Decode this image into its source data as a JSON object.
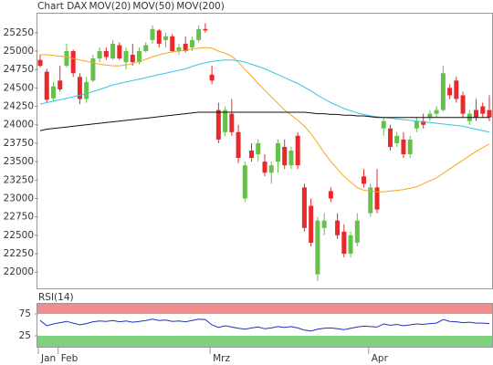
{
  "chart_data": [
    {
      "type": "candlestick",
      "categories": [
        "Jan",
        null,
        null,
        "Feb",
        null,
        null,
        null,
        null,
        null,
        null,
        null,
        null,
        null,
        null,
        null,
        null,
        null,
        null,
        null,
        null,
        null,
        null,
        null,
        null,
        null,
        null,
        "Mrz",
        null,
        null,
        null,
        null,
        null,
        null,
        null,
        null,
        null,
        null,
        null,
        null,
        null,
        null,
        null,
        null,
        null,
        null,
        null,
        null,
        null,
        null,
        null,
        "Apr",
        null,
        null,
        null,
        null,
        null,
        null,
        null,
        null,
        null,
        null,
        null,
        null,
        null,
        null,
        null,
        null,
        null,
        null
      ],
      "candles": {
        "name": "Chart DAX",
        "color": "#e8282b",
        "up_color": "#66c04a",
        "open": [
          24880,
          24720,
          24360,
          24600,
          24800,
          25000,
          24650,
          24350,
          24600,
          24900,
          25000,
          24900,
          25080,
          24850,
          24950,
          24850,
          25000,
          25150,
          25280,
          25150,
          25200,
          25000,
          25100,
          25050,
          25150,
          25300,
          24680,
          24200,
          23900,
          24150,
          23900,
          23000,
          23650,
          23600,
          23500,
          23350,
          23500,
          23700,
          23450,
          23850,
          23150,
          22900,
          21970,
          22600,
          23100,
          22700,
          22550,
          22250,
          22400,
          23300,
          22800,
          23150,
          23950,
          23950,
          23750,
          23800,
          23600,
          23950,
          24050,
          24100,
          24150,
          24200,
          24500,
          24600,
          24400,
          24050,
          24200,
          24250,
          24200
        ],
        "high": [
          24950,
          24760,
          24580,
          24800,
          25100,
          25020,
          24700,
          24650,
          24950,
          25050,
          25050,
          25150,
          25120,
          25050,
          25100,
          25050,
          25120,
          25350,
          25300,
          25250,
          25230,
          25100,
          25200,
          25200,
          25350,
          25380,
          24800,
          24300,
          24250,
          24350,
          24000,
          23500,
          23750,
          23800,
          23600,
          23500,
          23800,
          23800,
          23700,
          23900,
          23200,
          23000,
          22750,
          22800,
          23150,
          22800,
          22650,
          22550,
          22800,
          23400,
          23200,
          23400,
          24100,
          24000,
          23900,
          23900,
          23850,
          24100,
          24150,
          24200,
          24250,
          24800,
          24550,
          24650,
          24450,
          24200,
          24350,
          24300,
          24400
        ],
        "low": [
          24780,
          24300,
          24320,
          24450,
          24780,
          24650,
          24280,
          24300,
          24580,
          24850,
          24880,
          24880,
          24880,
          24750,
          24800,
          24820,
          24980,
          25100,
          25050,
          25050,
          24980,
          24950,
          24980,
          25000,
          25120,
          25250,
          24550,
          23750,
          23850,
          23850,
          23480,
          22950,
          23500,
          23500,
          23300,
          23200,
          23350,
          23400,
          23400,
          23400,
          22550,
          22350,
          21880,
          22500,
          22950,
          22450,
          22200,
          22200,
          22350,
          23150,
          22750,
          22800,
          23850,
          23650,
          23700,
          23550,
          23550,
          23900,
          23950,
          24050,
          24100,
          24180,
          24350,
          24300,
          24100,
          24000,
          24050,
          24100,
          24050
        ],
        "close": [
          24800,
          24340,
          24520,
          24480,
          25000,
          24700,
          24350,
          24580,
          24900,
          25000,
          24920,
          25100,
          24900,
          25000,
          24850,
          25000,
          25080,
          25300,
          25100,
          25200,
          25000,
          25050,
          25000,
          25150,
          25300,
          25280,
          24600,
          23800,
          24200,
          23900,
          23550,
          23450,
          23550,
          23750,
          23350,
          23450,
          23750,
          23450,
          23650,
          23450,
          22600,
          22400,
          22700,
          22700,
          23000,
          22500,
          22250,
          22500,
          22700,
          23200,
          23150,
          22850,
          24050,
          23700,
          23850,
          23600,
          23800,
          24050,
          24000,
          24150,
          24200,
          24700,
          24400,
          24350,
          24150,
          24150,
          24100,
          24150,
          24100
        ]
      },
      "series": [
        {
          "name": "MOV(20)",
          "color": "#f5a623",
          "values": [
            24950,
            24950,
            24940,
            24930,
            24920,
            24900,
            24880,
            24860,
            24840,
            24820,
            24810,
            24800,
            24800,
            24810,
            24830,
            24860,
            24890,
            24920,
            24950,
            24970,
            24990,
            25000,
            25010,
            25030,
            25040,
            25050,
            25040,
            25000,
            24970,
            24930,
            24850,
            24750,
            24660,
            24560,
            24470,
            24380,
            24290,
            24200,
            24130,
            24060,
            23980,
            23880,
            23750,
            23620,
            23500,
            23400,
            23300,
            23220,
            23150,
            23110,
            23100,
            23090,
            23090,
            23100,
            23110,
            23120,
            23140,
            23160,
            23200,
            23240,
            23280,
            23340,
            23400,
            23460,
            23520,
            23580,
            23640,
            23690,
            23740
          ]
        },
        {
          "name": "MOV(50)",
          "color": "#33c6e8",
          "values": [
            24280,
            24300,
            24320,
            24340,
            24360,
            24380,
            24400,
            24420,
            24450,
            24480,
            24510,
            24540,
            24560,
            24580,
            24600,
            24620,
            24640,
            24660,
            24680,
            24700,
            24720,
            24740,
            24760,
            24790,
            24820,
            24840,
            24860,
            24870,
            24880,
            24880,
            24870,
            24850,
            24820,
            24790,
            24760,
            24720,
            24680,
            24640,
            24600,
            24560,
            24510,
            24460,
            24400,
            24350,
            24300,
            24260,
            24220,
            24190,
            24160,
            24140,
            24120,
            24110,
            24100,
            24090,
            24080,
            24070,
            24060,
            24050,
            24040,
            24030,
            24020,
            24010,
            24000,
            23990,
            23980,
            23960,
            23940,
            23920,
            23900
          ]
        },
        {
          "name": "MOV(200)",
          "color": "#111111",
          "values": [
            23920,
            23940,
            23950,
            23960,
            23970,
            23980,
            23990,
            24000,
            24010,
            24020,
            24030,
            24040,
            24050,
            24060,
            24070,
            24080,
            24090,
            24100,
            24110,
            24120,
            24130,
            24140,
            24150,
            24160,
            24170,
            24170,
            24170,
            24170,
            24170,
            24170,
            24170,
            24170,
            24170,
            24170,
            24170,
            24170,
            24170,
            24170,
            24170,
            24170,
            24170,
            24160,
            24150,
            24150,
            24140,
            24140,
            24130,
            24130,
            24120,
            24120,
            24110,
            24100,
            24100,
            24100,
            24100,
            24100,
            24100,
            24100,
            24100,
            24100,
            24100,
            24100,
            24100,
            24100,
            24100,
            24100,
            24100,
            24100,
            24100
          ]
        }
      ],
      "ylim": [
        21780,
        25520
      ],
      "yticks": [
        22000,
        22250,
        22500,
        22750,
        23000,
        23250,
        23500,
        23750,
        24000,
        24250,
        24500,
        24750,
        25000,
        25250
      ]
    },
    {
      "type": "line",
      "title": "RSI(14)",
      "color": "#2233bb",
      "values": [
        60,
        48,
        52,
        55,
        58,
        54,
        50,
        53,
        57,
        59,
        58,
        60,
        57,
        59,
        56,
        58,
        60,
        63,
        60,
        61,
        58,
        59,
        57,
        60,
        63,
        62,
        50,
        44,
        48,
        45,
        42,
        40,
        43,
        45,
        41,
        43,
        46,
        44,
        46,
        43,
        38,
        36,
        40,
        42,
        43,
        41,
        39,
        42,
        45,
        47,
        46,
        45,
        52,
        49,
        51,
        48,
        50,
        52,
        51,
        53,
        54,
        62,
        58,
        57,
        55,
        56,
        54,
        54,
        53
      ],
      "ylim": [
        0,
        100
      ],
      "yticks": [
        25,
        75
      ],
      "band_colors": [
        "#7fd07f",
        "#f08c8c"
      ]
    }
  ]
}
